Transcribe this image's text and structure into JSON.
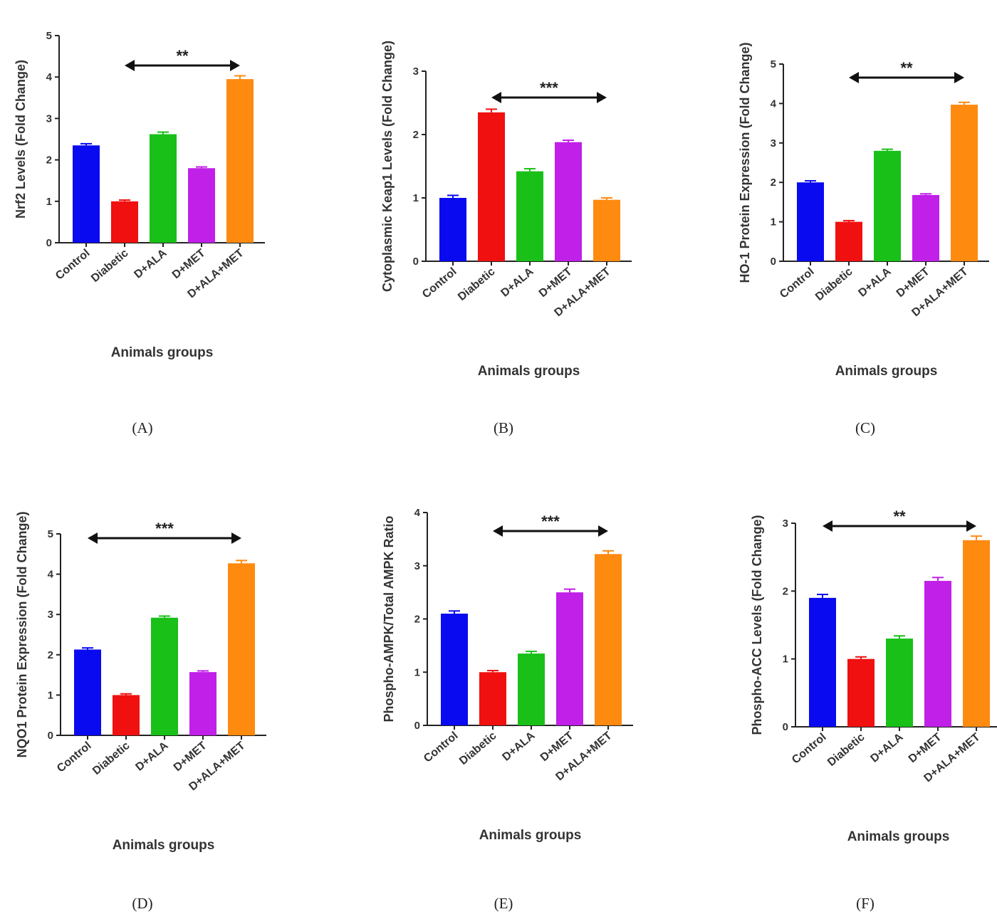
{
  "colors": {
    "Control": "#0a0af0",
    "Diabetic": "#f01010",
    "D+ALA": "#18c018",
    "D+MET": "#c020e8",
    "D+ALA+MET": "#ff8a10"
  },
  "chart_data": [
    {
      "type": "bar",
      "panel": "(A)",
      "ylabel": "Nrf2 Levels (Fold Change)",
      "xlabel": "Animals groups",
      "categories": [
        "Control",
        "Diabetic",
        "D+ALA",
        "D+MET",
        "D+ALA+MET"
      ],
      "values": [
        2.35,
        1.0,
        2.62,
        1.8,
        3.95
      ],
      "errors": [
        0.04,
        0.03,
        0.05,
        0.03,
        0.08
      ],
      "ylim": [
        0,
        5
      ],
      "yticks": [
        0,
        1,
        2,
        3,
        4,
        5
      ],
      "significance": {
        "label": "**",
        "from": "Diabetic",
        "to": "D+ALA+MET"
      }
    },
    {
      "type": "bar",
      "panel": "(B)",
      "ylabel": "Cytoplasmic Keap1 Levels (Fold Change)",
      "xlabel": "Animals groups",
      "categories": [
        "Control",
        "Diabetic",
        "D+ALA",
        "D+MET",
        "D+ALA+MET"
      ],
      "values": [
        1.0,
        2.35,
        1.42,
        1.88,
        0.97
      ],
      "errors": [
        0.04,
        0.05,
        0.04,
        0.03,
        0.03
      ],
      "ylim": [
        0,
        3
      ],
      "yticks": [
        0,
        1,
        2,
        3
      ],
      "significance": {
        "label": "***",
        "from": "Diabetic",
        "to": "D+ALA+MET"
      }
    },
    {
      "type": "bar",
      "panel": "(C)",
      "ylabel": "HO-1 Protein Expression (Fold Change)",
      "xlabel": "Animals groups",
      "categories": [
        "Control",
        "Diabetic",
        "D+ALA",
        "D+MET",
        "D+ALA+MET"
      ],
      "values": [
        2.0,
        1.0,
        2.8,
        1.68,
        3.97
      ],
      "errors": [
        0.04,
        0.03,
        0.04,
        0.03,
        0.06
      ],
      "ylim": [
        0,
        5
      ],
      "yticks": [
        0,
        1,
        2,
        3,
        4,
        5
      ],
      "significance": {
        "label": "**",
        "from": "Diabetic",
        "to": "D+ALA+MET"
      }
    },
    {
      "type": "bar",
      "panel": "(D)",
      "ylabel": "NQO1 Protein Expression (Fold Change)",
      "xlabel": "Animals groups",
      "categories": [
        "Control",
        "Diabetic",
        "D+ALA",
        "D+MET",
        "D+ALA+MET"
      ],
      "values": [
        2.13,
        1.0,
        2.92,
        1.57,
        4.27
      ],
      "errors": [
        0.04,
        0.03,
        0.04,
        0.03,
        0.07
      ],
      "ylim": [
        0,
        5
      ],
      "yticks": [
        0,
        1,
        2,
        3,
        4,
        5
      ],
      "significance": {
        "label": "***",
        "from": "Control",
        "to": "D+ALA+MET"
      }
    },
    {
      "type": "bar",
      "panel": "(E)",
      "ylabel": "Phospho-AMPK/Total AMPK Ratio",
      "xlabel": "Animals groups",
      "categories": [
        "Control",
        "Diabetic",
        "D+ALA",
        "D+MET",
        "D+ALA+MET"
      ],
      "values": [
        2.1,
        1.0,
        1.35,
        2.5,
        3.22
      ],
      "errors": [
        0.05,
        0.03,
        0.04,
        0.06,
        0.06
      ],
      "ylim": [
        0,
        4
      ],
      "yticks": [
        0,
        1,
        2,
        3,
        4
      ],
      "significance": {
        "label": "***",
        "from": "Diabetic",
        "to": "D+ALA+MET"
      }
    },
    {
      "type": "bar",
      "panel": "(F)",
      "ylabel": "Phospho-ACC Levels (Fold Change)",
      "xlabel": "Animals groups",
      "categories": [
        "Control",
        "Diabetic",
        "D+ALA",
        "D+MET",
        "D+ALA+MET"
      ],
      "values": [
        1.9,
        1.0,
        1.3,
        2.15,
        2.75
      ],
      "errors": [
        0.05,
        0.03,
        0.04,
        0.05,
        0.06
      ],
      "ylim": [
        0,
        3
      ],
      "yticks": [
        0,
        1,
        2,
        3
      ],
      "significance": {
        "label": "**",
        "from": "Control",
        "to": "D+ALA+MET"
      }
    }
  ]
}
